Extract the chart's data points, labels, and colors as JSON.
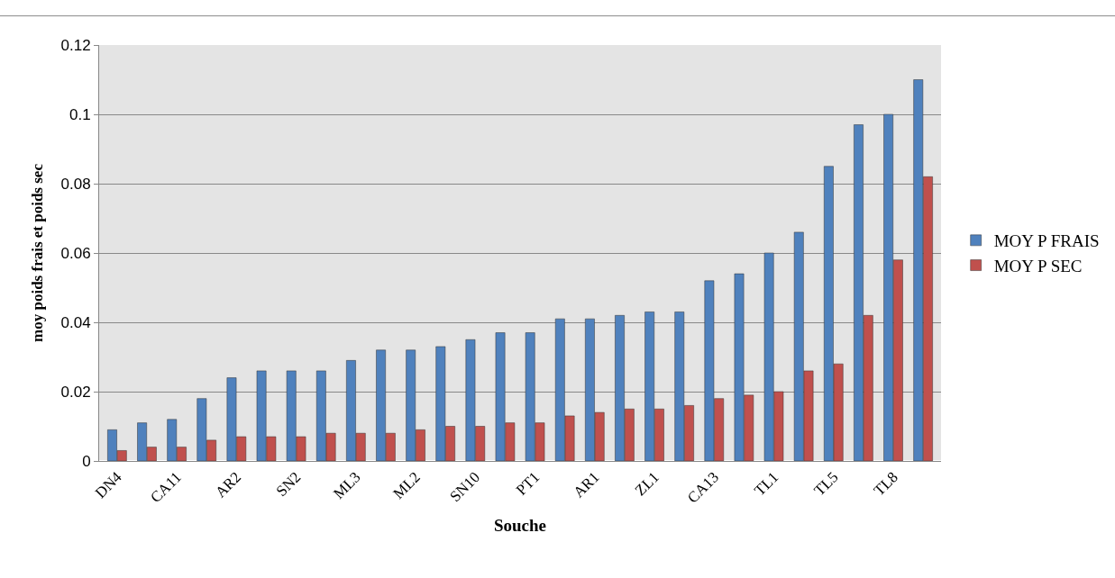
{
  "chart_data": {
    "type": "bar",
    "xlabel": "Souche",
    "ylabel": "moy poids frais et poids sec",
    "categories": [
      "DN4",
      null,
      "CA11",
      null,
      "AR2",
      null,
      "SN2",
      null,
      "ML3",
      null,
      "ML2",
      null,
      "SN10",
      null,
      "PT1",
      null,
      "AR1",
      null,
      "ZL1",
      null,
      "CA13",
      null,
      "TL1",
      null,
      "TL5",
      null,
      "TL8",
      null
    ],
    "series": [
      {
        "name": "MOY P FRAIS",
        "color": "#4f81bd",
        "values": [
          0.009,
          0.011,
          0.012,
          0.018,
          0.024,
          0.026,
          0.026,
          0.026,
          0.029,
          0.032,
          0.032,
          0.033,
          0.035,
          0.037,
          0.037,
          0.041,
          0.041,
          0.042,
          0.043,
          0.043,
          0.052,
          0.054,
          0.06,
          0.066,
          0.085,
          0.097,
          0.1,
          0.11
        ]
      },
      {
        "name": "MOY P SEC",
        "color": "#c0504d",
        "values": [
          0.003,
          0.004,
          0.004,
          0.006,
          0.007,
          0.007,
          0.007,
          0.008,
          0.008,
          0.008,
          0.009,
          0.01,
          0.01,
          0.011,
          0.011,
          0.013,
          0.014,
          0.015,
          0.015,
          0.016,
          0.018,
          0.019,
          0.02,
          0.026,
          0.028,
          0.042,
          0.058,
          0.082
        ]
      }
    ],
    "ylim": [
      0,
      0.12
    ],
    "yticks": [
      0,
      0.02,
      0.04,
      0.06,
      0.08,
      0.1,
      0.12
    ],
    "grid": "y",
    "legend": "right"
  }
}
